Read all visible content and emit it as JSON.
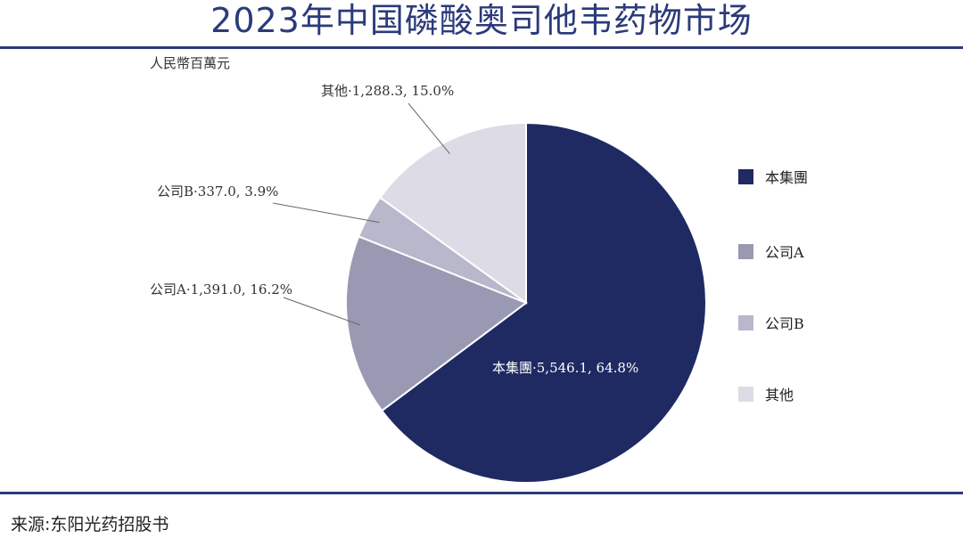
{
  "title": "2023年中国磷酸奥司他韦药物市场",
  "source": "来源:东阳光药招股书",
  "chart_data": {
    "type": "pie",
    "unit_label": "人民幣百萬元",
    "slices": [
      {
        "name": "本集團",
        "value": 5546.1,
        "value_label": "5,546.1",
        "percent": 64.8,
        "percent_label": "64.8%",
        "color": "#1f2a63"
      },
      {
        "name": "公司A",
        "value": 1391.0,
        "value_label": "1,391.0",
        "percent": 16.2,
        "percent_label": "16.2%",
        "color": "#9a99b3"
      },
      {
        "name": "公司B",
        "value": 337.0,
        "value_label": "337.0",
        "percent": 3.9,
        "percent_label": "3.9%",
        "color": "#b8b7cb"
      },
      {
        "name": "其他",
        "value": 1288.3,
        "value_label": "1,288.3",
        "percent": 15.0,
        "percent_label": "15.0%",
        "color": "#dddce6"
      }
    ],
    "legend": [
      "本集團",
      "公司A",
      "公司B",
      "其他"
    ],
    "legend_position": "right"
  }
}
